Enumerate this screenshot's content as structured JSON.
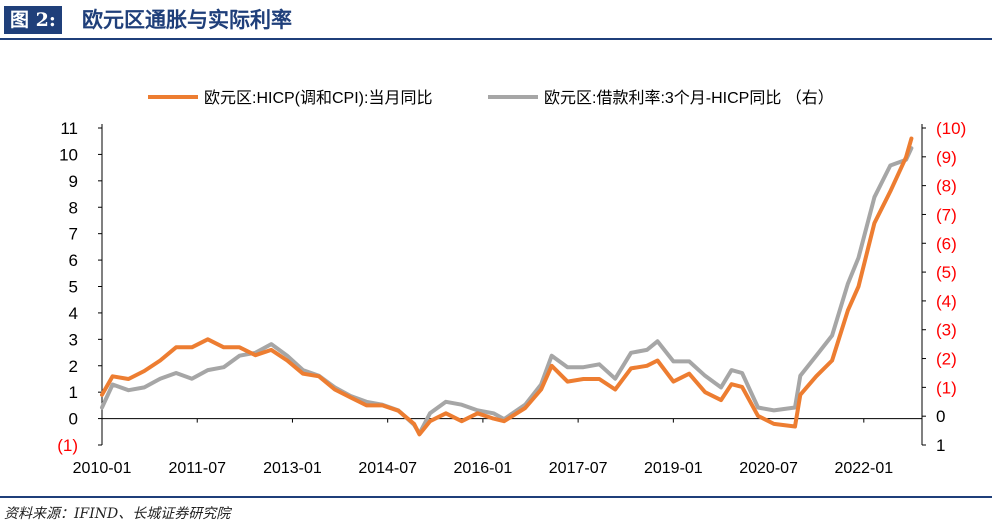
{
  "figure": {
    "label": "图 2:",
    "title": "欧元区通胀与实际利率",
    "source": "资料来源：IFIND、长城证券研究院"
  },
  "colors": {
    "series1": "#ed7d31",
    "series2": "#a6a6a6",
    "right_axis": "#ff0000",
    "header": "#1f3f7a"
  },
  "chart_data": {
    "type": "line",
    "title": "",
    "legend_position": "top",
    "x_ticks": [
      "2010-01",
      "2011-07",
      "2013-01",
      "2014-07",
      "2016-01",
      "2017-07",
      "2019-01",
      "2020-07",
      "2022-01"
    ],
    "x_start": "2010-01",
    "x_end": "2022-12",
    "y_left": {
      "ylim": [
        -1,
        11
      ],
      "ticks": [
        "(1)",
        "0",
        "1",
        "2",
        "3",
        "4",
        "5",
        "6",
        "7",
        "8",
        "9",
        "10",
        "11"
      ]
    },
    "y_right": {
      "ylim": [
        1,
        -10
      ],
      "ticks": [
        "1",
        "0",
        "(1)",
        "(2)",
        "(3)",
        "(4)",
        "(5)",
        "(6)",
        "(7)",
        "(8)",
        "(9)",
        "(10)"
      ],
      "label_color": "#ff0000"
    },
    "series": [
      {
        "name": "欧元区:HICP(调和CPI):当月同比",
        "axis": "left",
        "color": "#ed7d31",
        "points": [
          [
            "2010-01",
            0.9
          ],
          [
            "2010-03",
            1.6
          ],
          [
            "2010-06",
            1.5
          ],
          [
            "2010-09",
            1.8
          ],
          [
            "2010-12",
            2.2
          ],
          [
            "2011-03",
            2.7
          ],
          [
            "2011-06",
            2.7
          ],
          [
            "2011-09",
            3.0
          ],
          [
            "2011-12",
            2.7
          ],
          [
            "2012-03",
            2.7
          ],
          [
            "2012-06",
            2.4
          ],
          [
            "2012-09",
            2.6
          ],
          [
            "2012-12",
            2.2
          ],
          [
            "2013-03",
            1.7
          ],
          [
            "2013-06",
            1.6
          ],
          [
            "2013-09",
            1.1
          ],
          [
            "2013-12",
            0.8
          ],
          [
            "2014-03",
            0.5
          ],
          [
            "2014-06",
            0.5
          ],
          [
            "2014-09",
            0.3
          ],
          [
            "2014-12",
            -0.2
          ],
          [
            "2015-01",
            -0.6
          ],
          [
            "2015-03",
            -0.1
          ],
          [
            "2015-06",
            0.2
          ],
          [
            "2015-09",
            -0.1
          ],
          [
            "2015-12",
            0.2
          ],
          [
            "2016-03",
            0.0
          ],
          [
            "2016-05",
            -0.1
          ],
          [
            "2016-09",
            0.4
          ],
          [
            "2016-12",
            1.1
          ],
          [
            "2017-02",
            2.0
          ],
          [
            "2017-05",
            1.4
          ],
          [
            "2017-08",
            1.5
          ],
          [
            "2017-11",
            1.5
          ],
          [
            "2018-02",
            1.1
          ],
          [
            "2018-05",
            1.9
          ],
          [
            "2018-08",
            2.0
          ],
          [
            "2018-10",
            2.2
          ],
          [
            "2019-01",
            1.4
          ],
          [
            "2019-04",
            1.7
          ],
          [
            "2019-07",
            1.0
          ],
          [
            "2019-10",
            0.7
          ],
          [
            "2019-12",
            1.3
          ],
          [
            "2020-02",
            1.2
          ],
          [
            "2020-05",
            0.1
          ],
          [
            "2020-08",
            -0.2
          ],
          [
            "2020-12",
            -0.3
          ],
          [
            "2021-01",
            0.9
          ],
          [
            "2021-04",
            1.6
          ],
          [
            "2021-07",
            2.2
          ],
          [
            "2021-10",
            4.1
          ],
          [
            "2021-12",
            5.0
          ],
          [
            "2022-03",
            7.4
          ],
          [
            "2022-06",
            8.6
          ],
          [
            "2022-09",
            9.9
          ],
          [
            "2022-10",
            10.6
          ]
        ]
      },
      {
        "name": "欧元区:借款利率:3个月-HICP同比 （右）",
        "axis": "right",
        "color": "#a6a6a6",
        "points": [
          [
            "2010-01",
            -0.3
          ],
          [
            "2010-03",
            -1.1
          ],
          [
            "2010-06",
            -0.9
          ],
          [
            "2010-09",
            -1.0
          ],
          [
            "2010-12",
            -1.3
          ],
          [
            "2011-03",
            -1.5
          ],
          [
            "2011-06",
            -1.3
          ],
          [
            "2011-09",
            -1.6
          ],
          [
            "2011-12",
            -1.7
          ],
          [
            "2012-03",
            -2.1
          ],
          [
            "2012-06",
            -2.2
          ],
          [
            "2012-09",
            -2.5
          ],
          [
            "2012-12",
            -2.1
          ],
          [
            "2013-03",
            -1.6
          ],
          [
            "2013-06",
            -1.4
          ],
          [
            "2013-09",
            -1.0
          ],
          [
            "2013-12",
            -0.7
          ],
          [
            "2014-03",
            -0.5
          ],
          [
            "2014-06",
            -0.4
          ],
          [
            "2014-09",
            -0.2
          ],
          [
            "2014-12",
            0.3
          ],
          [
            "2015-01",
            0.6
          ],
          [
            "2015-03",
            -0.1
          ],
          [
            "2015-06",
            -0.5
          ],
          [
            "2015-09",
            -0.4
          ],
          [
            "2015-12",
            -0.2
          ],
          [
            "2016-03",
            -0.1
          ],
          [
            "2016-05",
            0.1
          ],
          [
            "2016-09",
            -0.4
          ],
          [
            "2016-12",
            -1.1
          ],
          [
            "2017-02",
            -2.1
          ],
          [
            "2017-05",
            -1.7
          ],
          [
            "2017-08",
            -1.7
          ],
          [
            "2017-11",
            -1.8
          ],
          [
            "2018-02",
            -1.3
          ],
          [
            "2018-05",
            -2.2
          ],
          [
            "2018-08",
            -2.3
          ],
          [
            "2018-10",
            -2.6
          ],
          [
            "2019-01",
            -1.9
          ],
          [
            "2019-04",
            -1.9
          ],
          [
            "2019-07",
            -1.4
          ],
          [
            "2019-10",
            -1.0
          ],
          [
            "2019-12",
            -1.6
          ],
          [
            "2020-02",
            -1.5
          ],
          [
            "2020-05",
            -0.3
          ],
          [
            "2020-08",
            -0.2
          ],
          [
            "2020-12",
            -0.3
          ],
          [
            "2021-01",
            -1.4
          ],
          [
            "2021-04",
            -2.1
          ],
          [
            "2021-07",
            -2.8
          ],
          [
            "2021-10",
            -4.6
          ],
          [
            "2021-12",
            -5.5
          ],
          [
            "2022-03",
            -7.6
          ],
          [
            "2022-06",
            -8.7
          ],
          [
            "2022-09",
            -8.9
          ],
          [
            "2022-10",
            -9.3
          ]
        ]
      }
    ]
  }
}
